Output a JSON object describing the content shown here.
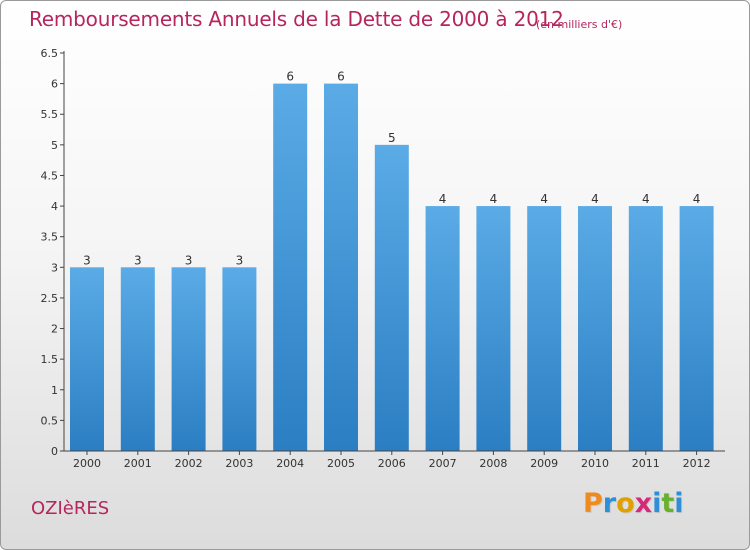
{
  "header": {
    "title": "Remboursements Annuels de la Dette de 2000 à 2012",
    "unit": "(en milliers d'€)"
  },
  "footer": {
    "commune": "OZIèRES",
    "logo_letters": [
      "P",
      "r",
      "o",
      "x",
      "i",
      "t",
      "i"
    ],
    "logo_colors": [
      "#f08a1c",
      "#2f8fd6",
      "#e0a000",
      "#d42a7a",
      "#2f8fd6",
      "#68b12f",
      "#2f8fd6"
    ]
  },
  "colors": {
    "bar_light": "#5aabe6",
    "bar_dark": "#2b7ec2",
    "title": "#b5265c",
    "axis_text": "#333333"
  },
  "chart_data": {
    "type": "bar",
    "categories": [
      "2000",
      "2001",
      "2002",
      "2003",
      "2004",
      "2005",
      "2006",
      "2007",
      "2008",
      "2009",
      "2010",
      "2011",
      "2012"
    ],
    "values": [
      3,
      3,
      3,
      3,
      6,
      6,
      5,
      4,
      4,
      4,
      4,
      4,
      4
    ],
    "data_labels": [
      "3",
      "3",
      "3",
      "3",
      "6",
      "6",
      "5",
      "4",
      "4",
      "4",
      "4",
      "4",
      "4"
    ],
    "yticks": [
      "0",
      "0.5",
      "1",
      "1.5",
      "2",
      "2.5",
      "3",
      "3.5",
      "4",
      "4.5",
      "5",
      "5.5",
      "6",
      "6.5"
    ],
    "ylim": [
      0,
      6.5
    ],
    "title": "Remboursements Annuels de la Dette de 2000 à 2012",
    "xlabel": "",
    "ylabel": "",
    "grid": false
  }
}
